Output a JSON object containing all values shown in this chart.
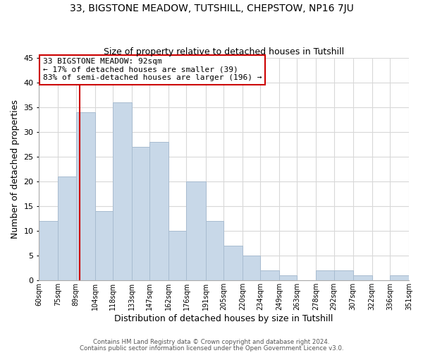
{
  "title": "33, BIGSTONE MEADOW, TUTSHILL, CHEPSTOW, NP16 7JU",
  "subtitle": "Size of property relative to detached houses in Tutshill",
  "xlabel": "Distribution of detached houses by size in Tutshill",
  "ylabel": "Number of detached properties",
  "bar_color": "#c8d8e8",
  "bar_edge_color": "#a8bcd0",
  "grid_color": "#d8d8d8",
  "reference_line_x": 92,
  "reference_line_color": "#cc0000",
  "annotation_title": "33 BIGSTONE MEADOW: 92sqm",
  "annotation_line1": "← 17% of detached houses are smaller (39)",
  "annotation_line2": "83% of semi-detached houses are larger (196) →",
  "annotation_box_color": "white",
  "annotation_box_edge": "#cc0000",
  "bin_edges": [
    60,
    75,
    89,
    104,
    118,
    133,
    147,
    162,
    176,
    191,
    205,
    220,
    234,
    249,
    263,
    278,
    292,
    307,
    322,
    336,
    351
  ],
  "bin_labels": [
    "60sqm",
    "75sqm",
    "89sqm",
    "104sqm",
    "118sqm",
    "133sqm",
    "147sqm",
    "162sqm",
    "176sqm",
    "191sqm",
    "205sqm",
    "220sqm",
    "234sqm",
    "249sqm",
    "263sqm",
    "278sqm",
    "292sqm",
    "307sqm",
    "322sqm",
    "336sqm",
    "351sqm"
  ],
  "counts": [
    12,
    21,
    34,
    14,
    36,
    27,
    28,
    10,
    20,
    12,
    7,
    5,
    2,
    1,
    0,
    2,
    2,
    1,
    0,
    1
  ],
  "ylim": [
    0,
    45
  ],
  "yticks": [
    0,
    5,
    10,
    15,
    20,
    25,
    30,
    35,
    40,
    45
  ],
  "footer1": "Contains HM Land Registry data © Crown copyright and database right 2024.",
  "footer2": "Contains public sector information licensed under the Open Government Licence v3.0."
}
